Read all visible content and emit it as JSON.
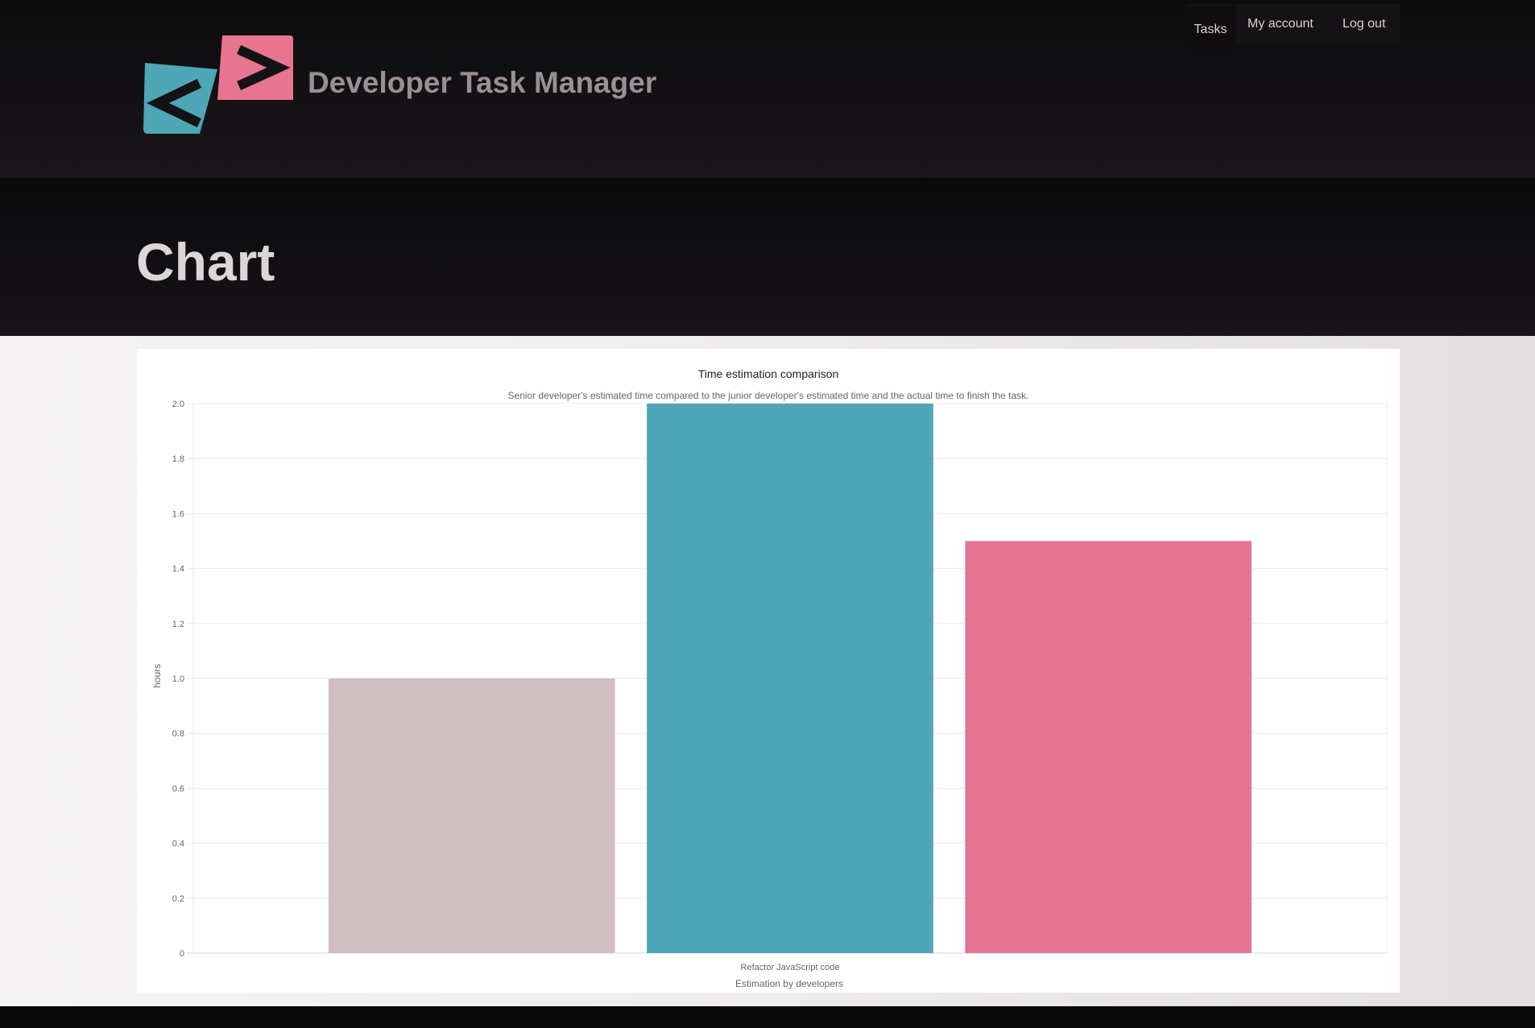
{
  "app": {
    "brand_name": "Developer Task Manager",
    "colors": {
      "logo_left": "#4ea6b6",
      "logo_right": "#e8758f",
      "logo_glyph": "#141214"
    }
  },
  "nav": {
    "items": [
      {
        "label": "Tasks"
      },
      {
        "label": "My account"
      },
      {
        "label": "Log out"
      }
    ]
  },
  "page": {
    "title": "Chart"
  },
  "chart_data": {
    "type": "bar",
    "title": "Time estimation comparison",
    "subtitle": "Senior developer's estimated time compared to the junior developer's estimated time and the actual time to finish the task.",
    "categories": [
      "Refactor JavaScript code"
    ],
    "xlabel": "Estimation by developers",
    "ylabel": "hours",
    "ylim": [
      0,
      2.0
    ],
    "yticks": [
      "0",
      "0.2",
      "0.4",
      "0.6",
      "0.8",
      "1.0",
      "1.2",
      "1.4",
      "1.6",
      "1.8",
      "2.0"
    ],
    "grid": true,
    "series": [
      {
        "values": [
          1.0
        ],
        "color": "#cfbfc1"
      },
      {
        "values": [
          2.0
        ],
        "color": "#4ea6b6"
      },
      {
        "values": [
          1.5
        ],
        "color": "#e67593"
      }
    ]
  }
}
